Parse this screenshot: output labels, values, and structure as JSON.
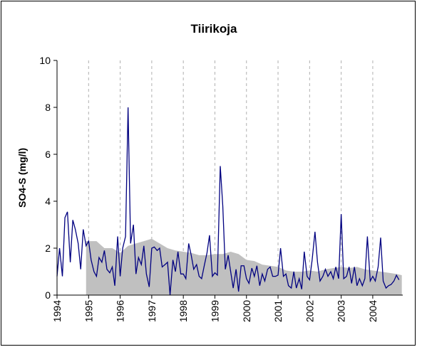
{
  "chart_data": {
    "type": "line",
    "title": "Tiirikoja",
    "ylabel": "SO4-S (mg/l)",
    "xlim": [
      1994,
      2004.95
    ],
    "xticks": [
      1994,
      1995,
      1996,
      1997,
      1998,
      1999,
      2000,
      2001,
      2002,
      2003,
      2004
    ],
    "ylim": [
      0,
      10
    ],
    "yticks": [
      0,
      2,
      4,
      6,
      8,
      10
    ],
    "grid": true,
    "series": [
      {
        "kind": "area",
        "color": "#c0c0c0",
        "x": [
          1994.92,
          1995.25,
          1995.5,
          1995.75,
          1996.0,
          1996.25,
          1996.5,
          1996.75,
          1997.0,
          1997.25,
          1997.5,
          1997.75,
          1998.0,
          1998.25,
          1998.5,
          1998.75,
          1999.0,
          1999.25,
          1999.5,
          1999.75,
          2000.0,
          2000.25,
          2000.5,
          2000.75,
          2001.0,
          2001.25,
          2001.5,
          2001.75,
          2002.0,
          2002.25,
          2002.5,
          2002.75,
          2003.0,
          2003.25,
          2003.5,
          2003.75,
          2004.0,
          2004.25,
          2004.5,
          2004.75,
          2004.92
        ],
        "values": [
          2.3,
          2.3,
          2.0,
          2.0,
          1.8,
          2.1,
          2.2,
          2.3,
          2.4,
          2.2,
          2.0,
          1.9,
          1.85,
          1.8,
          1.7,
          1.7,
          1.75,
          1.75,
          1.85,
          1.75,
          1.5,
          1.45,
          1.3,
          1.25,
          1.2,
          1.05,
          1.0,
          1.0,
          1.05,
          1.0,
          1.1,
          1.15,
          1.2,
          1.15,
          1.2,
          1.1,
          1.05,
          1.0,
          0.95,
          0.9,
          0.85
        ]
      },
      {
        "kind": "line",
        "color": "#000080",
        "x": [
          1994.0,
          1994.08,
          1994.17,
          1994.25,
          1994.33,
          1994.42,
          1994.5,
          1994.58,
          1994.67,
          1994.75,
          1994.83,
          1994.92,
          1995.0,
          1995.08,
          1995.17,
          1995.25,
          1995.33,
          1995.42,
          1995.5,
          1995.58,
          1995.67,
          1995.75,
          1995.83,
          1995.92,
          1996.0,
          1996.08,
          1996.17,
          1996.25,
          1996.33,
          1996.42,
          1996.5,
          1996.58,
          1996.67,
          1996.75,
          1996.83,
          1996.92,
          1997.0,
          1997.08,
          1997.17,
          1997.25,
          1997.33,
          1997.42,
          1997.5,
          1997.58,
          1997.67,
          1997.75,
          1997.83,
          1997.92,
          1998.0,
          1998.08,
          1998.17,
          1998.25,
          1998.33,
          1998.42,
          1998.5,
          1998.58,
          1998.67,
          1998.75,
          1998.83,
          1998.92,
          1999.0,
          1999.08,
          1999.17,
          1999.25,
          1999.33,
          1999.42,
          1999.5,
          1999.58,
          1999.67,
          1999.75,
          1999.83,
          1999.92,
          2000.0,
          2000.08,
          2000.17,
          2000.25,
          2000.33,
          2000.42,
          2000.5,
          2000.58,
          2000.67,
          2000.75,
          2000.83,
          2000.92,
          2001.0,
          2001.08,
          2001.17,
          2001.25,
          2001.33,
          2001.42,
          2001.5,
          2001.58,
          2001.67,
          2001.75,
          2001.83,
          2001.92,
          2002.0,
          2002.08,
          2002.17,
          2002.25,
          2002.33,
          2002.42,
          2002.5,
          2002.58,
          2002.67,
          2002.75,
          2002.83,
          2002.92,
          2003.0,
          2003.08,
          2003.17,
          2003.25,
          2003.33,
          2003.42,
          2003.5,
          2003.58,
          2003.67,
          2003.75,
          2003.83,
          2003.92,
          2004.0,
          2004.08,
          2004.17,
          2004.25,
          2004.33,
          2004.42,
          2004.5,
          2004.58,
          2004.67,
          2004.75,
          2004.83
        ],
        "values": [
          0.8,
          2.0,
          0.8,
          3.3,
          3.55,
          1.4,
          3.2,
          2.8,
          2.2,
          1.1,
          2.8,
          2.1,
          2.3,
          1.5,
          1.0,
          0.8,
          1.6,
          1.4,
          1.9,
          1.1,
          0.95,
          1.2,
          0.4,
          2.5,
          0.8,
          2.0,
          2.5,
          8.0,
          2.2,
          3.0,
          0.9,
          1.6,
          1.3,
          2.1,
          0.9,
          0.35,
          2.0,
          2.05,
          1.9,
          2.0,
          1.2,
          1.3,
          1.4,
          0.0,
          1.5,
          1.0,
          1.85,
          0.9,
          0.9,
          0.7,
          2.2,
          1.7,
          1.1,
          1.3,
          0.8,
          0.7,
          1.3,
          1.8,
          2.55,
          0.8,
          0.95,
          0.85,
          5.5,
          3.8,
          1.1,
          1.7,
          1.0,
          0.3,
          1.1,
          0.15,
          1.25,
          1.25,
          0.7,
          0.5,
          1.15,
          0.8,
          1.25,
          0.4,
          0.9,
          0.6,
          1.1,
          1.2,
          0.8,
          0.8,
          0.85,
          2.0,
          0.8,
          0.9,
          0.4,
          0.3,
          1.0,
          0.3,
          0.7,
          0.25,
          1.85,
          0.8,
          0.65,
          1.5,
          2.7,
          1.4,
          0.6,
          0.8,
          1.1,
          0.8,
          1.0,
          0.7,
          1.2,
          0.7,
          3.45,
          0.7,
          0.8,
          1.2,
          0.5,
          1.2,
          0.4,
          0.7,
          0.4,
          0.7,
          2.5,
          0.6,
          0.8,
          0.6,
          1.2,
          2.45,
          0.6,
          0.3,
          0.4,
          0.45,
          0.6,
          0.85,
          0.65
        ]
      }
    ]
  }
}
